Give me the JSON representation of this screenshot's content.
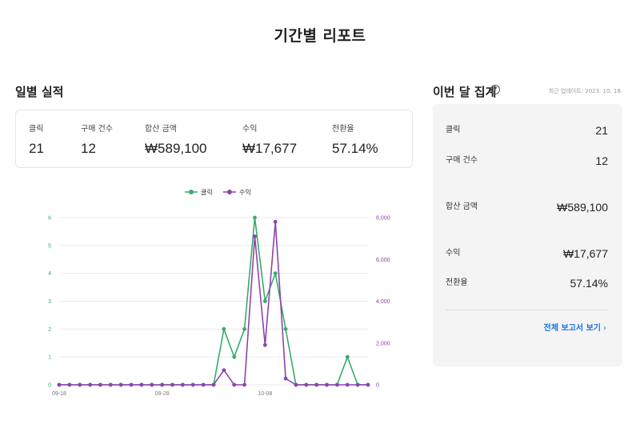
{
  "page": {
    "title": "기간별 리포트"
  },
  "daily": {
    "title": "일별 실적",
    "stats": [
      {
        "label": "클릭",
        "value": "21"
      },
      {
        "label": "구매 건수",
        "value": "12"
      },
      {
        "label": "합산 금액",
        "value": "₩589,100"
      },
      {
        "label": "수익",
        "value": "₩17,677"
      },
      {
        "label": "전환율",
        "value": "57.14%"
      }
    ]
  },
  "chart_data": {
    "type": "line",
    "x": [
      "09-18",
      "09-19",
      "09-20",
      "09-21",
      "09-22",
      "09-23",
      "09-24",
      "09-25",
      "09-26",
      "09-27",
      "09-28",
      "09-29",
      "09-30",
      "10-01",
      "10-02",
      "10-03",
      "10-04",
      "10-05",
      "10-06",
      "10-07",
      "10-08",
      "10-09",
      "10-10",
      "10-11",
      "10-12",
      "10-13",
      "10-14",
      "10-15",
      "10-16",
      "10-17",
      "10-18"
    ],
    "x_tick_labels": [
      "09-18",
      "09-28",
      "10-08"
    ],
    "legend": [
      "클릭",
      "수익"
    ],
    "legend_position": "top",
    "series": [
      {
        "name": "클릭",
        "axis": "left",
        "color": "#3aaa6a",
        "values": [
          0,
          0,
          0,
          0,
          0,
          0,
          0,
          0,
          0,
          0,
          0,
          0,
          0,
          0,
          0,
          0,
          2,
          1,
          2,
          6,
          3,
          4,
          2,
          0,
          0,
          0,
          0,
          0,
          1,
          0,
          0
        ]
      },
      {
        "name": "수익",
        "axis": "right",
        "color": "#8e44ad",
        "values": [
          0,
          0,
          0,
          0,
          0,
          0,
          0,
          0,
          0,
          0,
          0,
          0,
          0,
          0,
          0,
          0,
          700,
          0,
          0,
          7100,
          1900,
          7800,
          300,
          0,
          0,
          0,
          0,
          0,
          0,
          0,
          0
        ]
      }
    ],
    "left_axis": {
      "ylim": [
        0,
        6
      ],
      "ticks": [
        "0",
        "1",
        "2",
        "3",
        "4",
        "5",
        "6"
      ]
    },
    "right_axis": {
      "ylim": [
        0,
        8000
      ],
      "ticks": [
        "0",
        "2,000",
        "4,000",
        "6,000",
        "8,000"
      ]
    },
    "grid": true
  },
  "summary": {
    "title": "이번 달 집계",
    "help_icon": "help-circle-icon",
    "updated": "최근 업데이트: 2023. 10. 18.",
    "rows": [
      {
        "label": "클릭",
        "value": "21"
      },
      {
        "label": "구매 건수",
        "value": "12"
      },
      {
        "label": "합산 금액",
        "value": "₩589,100"
      },
      {
        "label": "수익",
        "value": "₩17,677"
      },
      {
        "label": "전환율",
        "value": "57.14%"
      }
    ],
    "full_report": "전체 보고서 보기",
    "chevron_icon": "chevron-right-icon"
  },
  "colors": {
    "accent": "#1a73e8",
    "click_series": "#3aaa6a",
    "revenue_series": "#8e44ad"
  }
}
